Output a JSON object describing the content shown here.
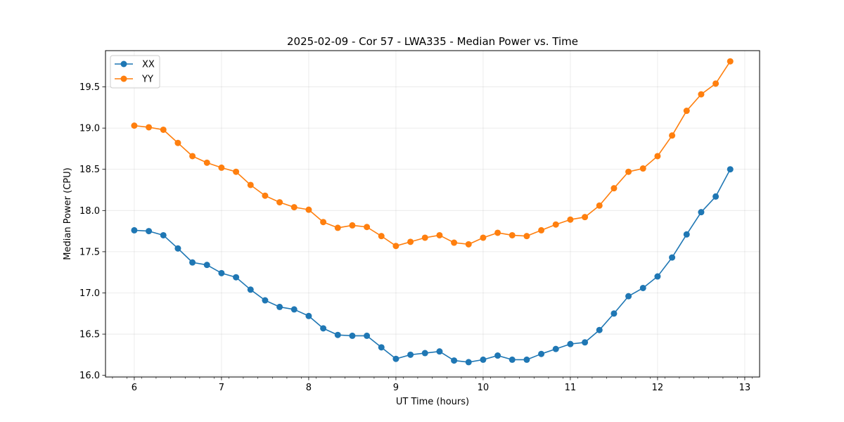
{
  "chart_data": {
    "type": "line",
    "title": "2025-02-09 - Cor 57 - LWA335 - Median Power vs. Time",
    "xlabel": "UT Time (hours)",
    "ylabel": "Median Power (CPU)",
    "xlim": [
      5.67,
      13.17
    ],
    "ylim": [
      15.98,
      19.94
    ],
    "x_ticks": [
      6,
      7,
      8,
      9,
      10,
      11,
      12,
      13
    ],
    "y_ticks": [
      16.0,
      16.5,
      17.0,
      17.5,
      18.0,
      18.5,
      19.0,
      19.5
    ],
    "x_tick_labels": [
      "6",
      "7",
      "8",
      "9",
      "10",
      "11",
      "12",
      "13"
    ],
    "y_tick_labels": [
      "16.0",
      "16.5",
      "17.0",
      "17.5",
      "18.0",
      "18.5",
      "19.0",
      "19.5"
    ],
    "grid": true,
    "legend_position": "top-left",
    "x": [
      6.0,
      6.1667,
      6.3333,
      6.5,
      6.6667,
      6.8333,
      7.0,
      7.1667,
      7.3333,
      7.5,
      7.6667,
      7.8333,
      8.0,
      8.1667,
      8.3333,
      8.5,
      8.6667,
      8.8333,
      9.0,
      9.1667,
      9.3333,
      9.5,
      9.6667,
      9.8333,
      10.0,
      10.1667,
      10.3333,
      10.5,
      10.6667,
      10.8333,
      11.0,
      11.1667,
      11.3333,
      11.5,
      11.6667,
      11.8333,
      12.0,
      12.1667,
      12.3333,
      12.5,
      12.6667,
      12.8333
    ],
    "series": [
      {
        "name": "XX",
        "color": "#1f77b4",
        "values": [
          17.76,
          17.75,
          17.7,
          17.54,
          17.37,
          17.34,
          17.24,
          17.19,
          17.04,
          16.91,
          16.83,
          16.8,
          16.72,
          16.57,
          16.49,
          16.48,
          16.48,
          16.34,
          16.2,
          16.25,
          16.27,
          16.29,
          16.18,
          16.16,
          16.19,
          16.24,
          16.19,
          16.19,
          16.26,
          16.32,
          16.38,
          16.4,
          16.55,
          16.75,
          16.96,
          17.06,
          17.2,
          17.43,
          17.71,
          17.98,
          18.17,
          18.5
        ]
      },
      {
        "name": "YY",
        "color": "#ff7f0e",
        "values": [
          19.03,
          19.01,
          18.98,
          18.82,
          18.66,
          18.58,
          18.52,
          18.47,
          18.31,
          18.18,
          18.1,
          18.04,
          18.01,
          17.86,
          17.79,
          17.82,
          17.8,
          17.69,
          17.57,
          17.62,
          17.67,
          17.7,
          17.61,
          17.59,
          17.67,
          17.73,
          17.7,
          17.69,
          17.76,
          17.83,
          17.89,
          17.92,
          18.06,
          18.27,
          18.47,
          18.51,
          18.66,
          18.91,
          19.21,
          19.41,
          19.54,
          19.81
        ]
      }
    ]
  }
}
